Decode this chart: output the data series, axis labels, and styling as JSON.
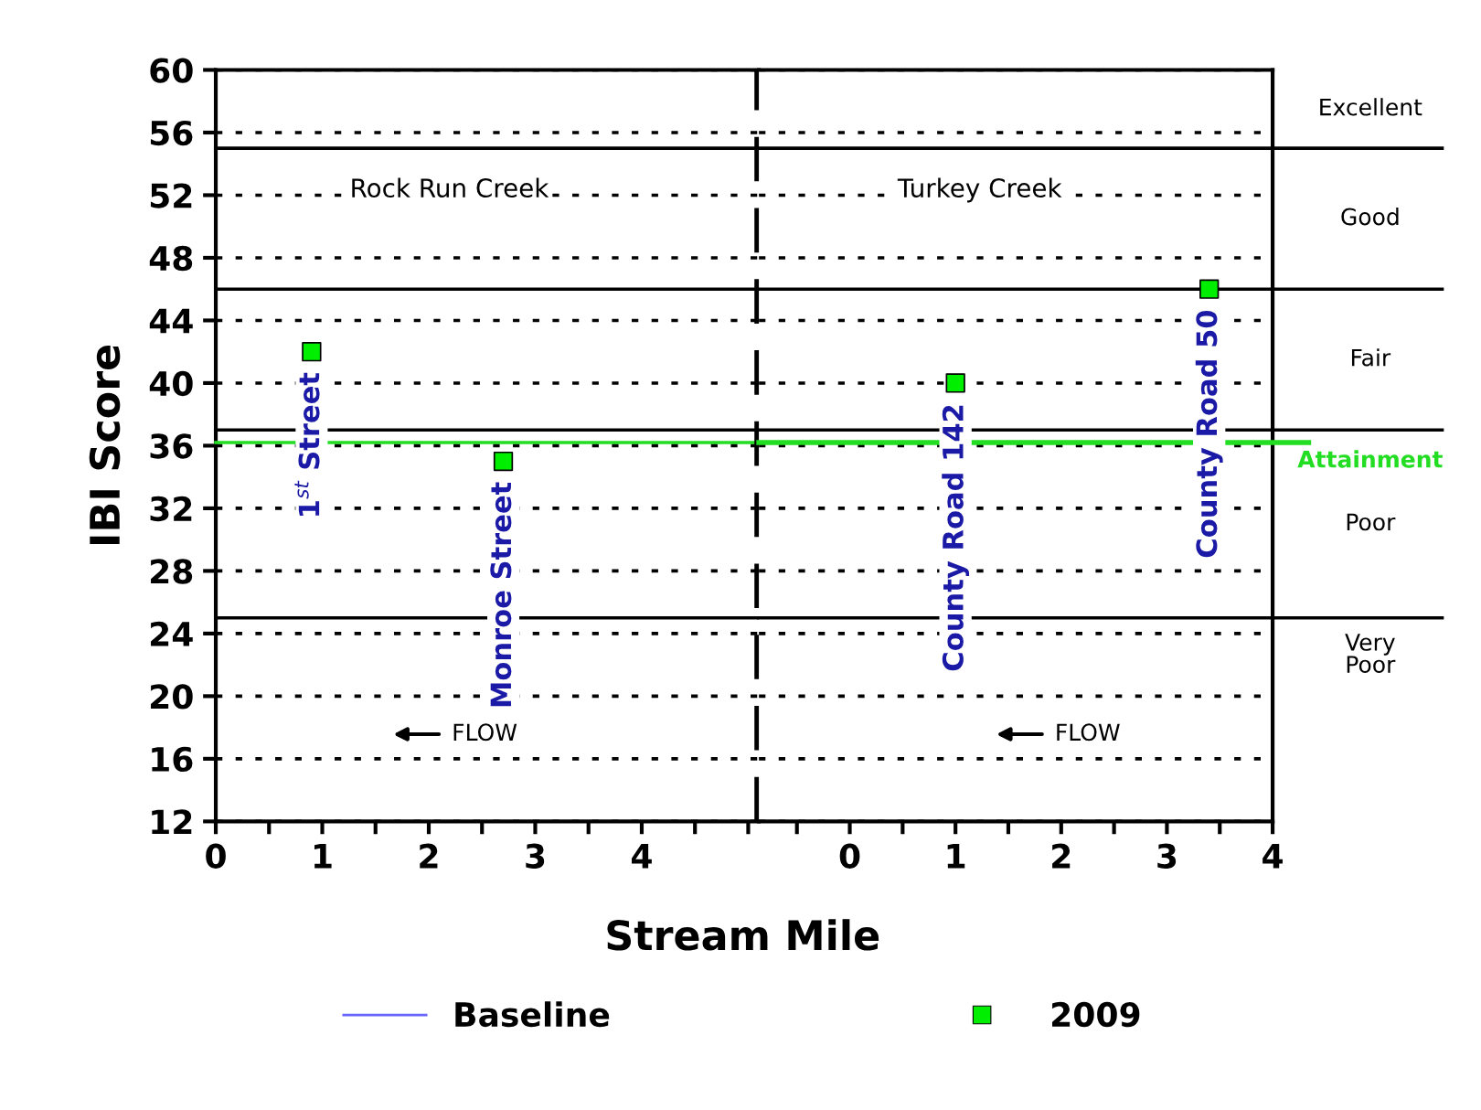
{
  "chart_data": [
    {
      "type": "scatter",
      "xlabel": "Stream Mile",
      "ylabel": "IBI Score",
      "xlim": [
        0,
        5.1
      ],
      "ylim": [
        12,
        60
      ],
      "xticks": [
        0,
        {
          "value": 0.5,
          "label": null
        },
        1,
        {
          "value": 1.5,
          "label": null
        },
        2,
        {
          "value": 2.5,
          "label": null
        },
        3,
        {
          "value": 3.5,
          "label": null
        },
        4,
        {
          "value": 4.5,
          "label": null
        },
        {
          "value": 5,
          "label": null
        }
      ],
      "yticks": [
        12,
        16,
        20,
        24,
        28,
        32,
        36,
        40,
        44,
        48,
        52,
        56,
        60
      ],
      "grid": "y",
      "legend": "bottom",
      "marker": "square",
      "series": [
        {
          "name": "Baseline",
          "type": "line",
          "color": "#6666ff"
        },
        {
          "name": "2009",
          "color": "#00ee00",
          "x": [
            0.9,
            2.7
          ],
          "values": [
            42,
            35
          ]
        }
      ],
      "ref_lines": [
        {
          "axis": "y",
          "value": 55,
          "label": null,
          "color": "#000000"
        },
        {
          "axis": "y",
          "value": 46,
          "label": null,
          "color": "#000000"
        },
        {
          "axis": "y",
          "value": 37,
          "label": null,
          "color": "#000000"
        },
        {
          "axis": "y",
          "value": 36.2,
          "label": null,
          "color": "#22dd22"
        },
        {
          "axis": "y",
          "value": 25,
          "label": null,
          "color": "#000000"
        },
        {
          "axis": "x",
          "value": 5.1,
          "label": null,
          "color": "#000000",
          "line_style": "dashed"
        }
      ],
      "annotations": [
        "Rock Run Creek",
        "FLOW",
        {
          "text": "1$^{st}$ Street",
          "x": 0.9,
          "y": 42
        },
        {
          "text": "Monroe Street",
          "x": 2.7,
          "y": 35
        }
      ]
    },
    {
      "type": "scatter",
      "xlim": [
        -0.86,
        4
      ],
      "ylim": [
        12,
        60
      ],
      "xticks": [
        {
          "value": -0.5,
          "label": null
        },
        0,
        {
          "value": 0.5,
          "label": null
        },
        1,
        {
          "value": 1.5,
          "label": null
        },
        2,
        {
          "value": 2.5,
          "label": null
        },
        3,
        {
          "value": 3.5,
          "label": null
        },
        4
      ],
      "yticks": [
        12,
        16,
        20,
        24,
        28,
        32,
        36,
        40,
        44,
        48,
        52,
        56,
        60
      ],
      "grid": "y",
      "tick_labels": "x",
      "marker": "square",
      "series": [
        {
          "name": "2009",
          "color": "#00ee00",
          "x": [
            1.0,
            3.4
          ],
          "values": [
            40,
            46
          ]
        }
      ],
      "ref_lines": [
        {
          "axis": "y",
          "value": 55,
          "label": null,
          "color": "#000000"
        },
        {
          "axis": "y",
          "value": 46,
          "label": null,
          "color": "#000000"
        },
        {
          "axis": "y",
          "value": 37,
          "label": null,
          "color": "#000000"
        },
        {
          "axis": "y",
          "value": 36.2,
          "label": "Attainment",
          "color": "#22dd22"
        },
        {
          "axis": "y",
          "value": 25,
          "label": null,
          "color": "#000000"
        }
      ],
      "annotations": [
        "Turkey Creek",
        "FLOW",
        {
          "text": "County Road 142",
          "x": 1.0,
          "y": 40
        },
        {
          "text": "County Road 50",
          "x": 3.4,
          "y": 46
        },
        "Excellent",
        "Good",
        "Fair",
        "Poor",
        "Very\nPoor"
      ]
    }
  ]
}
